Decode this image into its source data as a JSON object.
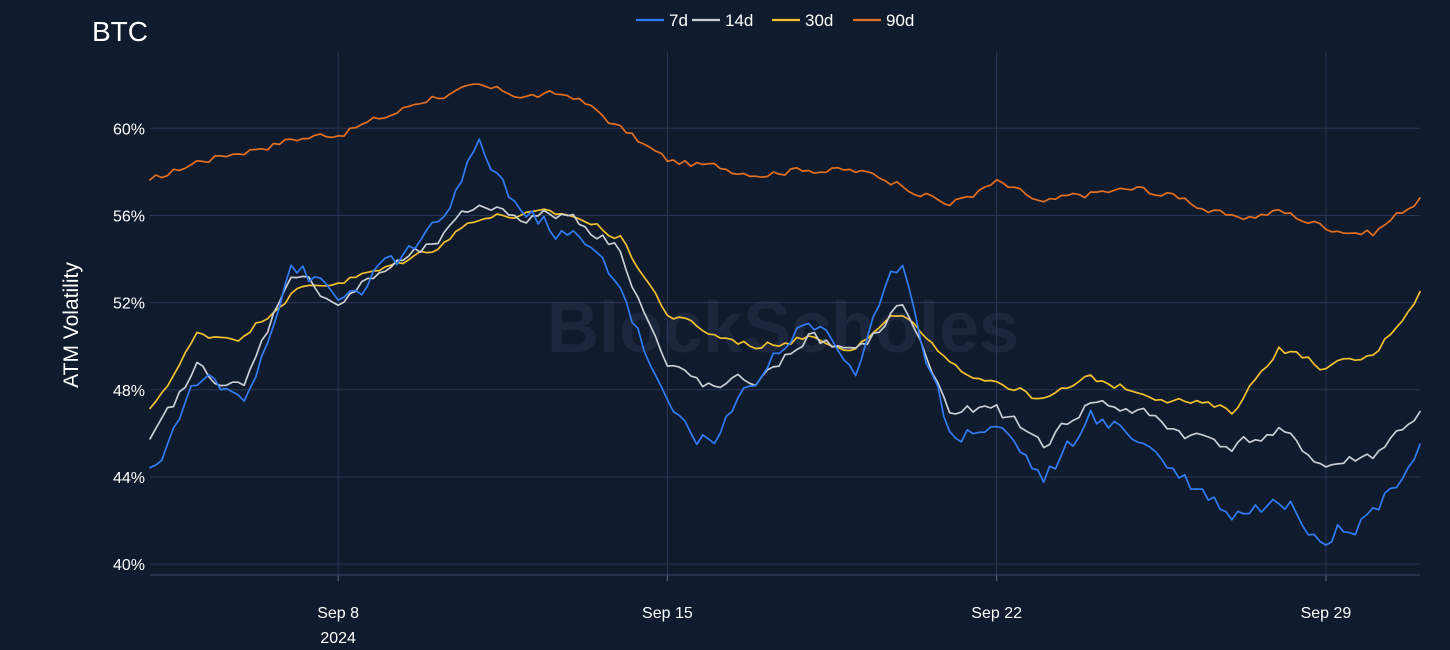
{
  "chart_data": {
    "type": "line",
    "title": "BTC",
    "ylabel": "ATM Volatility",
    "xlabel": "",
    "watermark": "BlockScholes",
    "legend_position": "top-center",
    "grid": true,
    "ylim": [
      39.5,
      63.5
    ],
    "y_ticks": [
      {
        "value": 40,
        "label": "40%"
      },
      {
        "value": 44,
        "label": "44%"
      },
      {
        "value": 48,
        "label": "48%"
      },
      {
        "value": 52,
        "label": "52%"
      },
      {
        "value": 56,
        "label": "56%"
      },
      {
        "value": 60,
        "label": "60%"
      }
    ],
    "x_range": [
      "2024-09-04",
      "2024-10-01"
    ],
    "x_ticks": [
      {
        "date": "2024-09-08",
        "label": "Sep 8",
        "sublabel": "2024"
      },
      {
        "date": "2024-09-15",
        "label": "Sep 15",
        "sublabel": ""
      },
      {
        "date": "2024-09-22",
        "label": "Sep 22",
        "sublabel": ""
      },
      {
        "date": "2024-09-29",
        "label": "Sep 29",
        "sublabel": ""
      }
    ],
    "x": [
      "2024-09-04",
      "2024-09-05",
      "2024-09-06",
      "2024-09-07",
      "2024-09-08",
      "2024-09-09",
      "2024-09-10",
      "2024-09-11",
      "2024-09-12",
      "2024-09-13",
      "2024-09-14",
      "2024-09-15",
      "2024-09-16",
      "2024-09-17",
      "2024-09-18",
      "2024-09-19",
      "2024-09-20",
      "2024-09-21",
      "2024-09-22",
      "2024-09-23",
      "2024-09-24",
      "2024-09-25",
      "2024-09-26",
      "2024-09-27",
      "2024-09-28",
      "2024-09-29",
      "2024-09-30",
      "2024-10-01"
    ],
    "series": [
      {
        "name": "7d",
        "color": "#2f7cf6",
        "values": [
          44.0,
          48.5,
          47.5,
          54.0,
          52.0,
          53.5,
          55.0,
          59.0,
          56.0,
          55.0,
          53.0,
          47.0,
          45.5,
          49.0,
          51.5,
          49.0,
          54.0,
          46.0,
          46.5,
          44.0,
          46.5,
          46.0,
          44.0,
          42.5,
          43.0,
          41.5,
          42.5,
          45.5
        ]
      },
      {
        "name": "14d",
        "color": "#c9cdd4",
        "values": [
          45.5,
          49.0,
          48.0,
          53.5,
          52.0,
          53.5,
          54.5,
          56.5,
          56.0,
          56.0,
          54.5,
          49.0,
          48.0,
          48.5,
          50.5,
          49.5,
          52.0,
          47.0,
          47.0,
          45.5,
          47.5,
          47.0,
          46.0,
          45.5,
          46.0,
          44.5,
          45.0,
          47.0
        ]
      },
      {
        "name": "30d",
        "color": "#f2c12e",
        "values": [
          47.0,
          50.5,
          50.5,
          52.5,
          53.0,
          53.5,
          54.5,
          56.0,
          56.0,
          56.0,
          55.0,
          51.5,
          50.5,
          50.0,
          50.5,
          50.0,
          51.5,
          49.0,
          48.5,
          47.5,
          48.5,
          48.0,
          47.5,
          47.0,
          50.0,
          49.0,
          49.5,
          52.5
        ]
      },
      {
        "name": "90d",
        "color": "#e2701f",
        "values": [
          57.5,
          58.5,
          59.0,
          59.5,
          59.8,
          60.5,
          61.5,
          61.8,
          61.5,
          61.5,
          60.0,
          58.5,
          58.2,
          58.0,
          58.2,
          58.0,
          57.5,
          56.5,
          57.5,
          56.5,
          57.0,
          57.2,
          56.8,
          55.8,
          56.2,
          55.5,
          55.2,
          56.8
        ]
      }
    ]
  }
}
